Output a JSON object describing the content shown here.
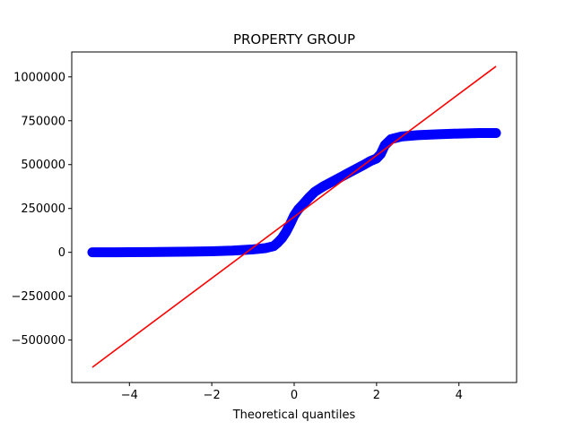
{
  "chart_data": {
    "type": "scatter",
    "title": "PROPERTY GROUP",
    "xlabel": "Theoretical quantiles",
    "ylabel": "",
    "xlim": [
      -5.4,
      5.4
    ],
    "ylim": [
      -742000,
      1142000
    ],
    "x_ticks": [
      -4,
      -2,
      0,
      2,
      4
    ],
    "x_tick_labels": [
      "−4",
      "−2",
      "0",
      "2",
      "4"
    ],
    "y_ticks": [
      -500000,
      -250000,
      0,
      250000,
      500000,
      750000,
      1000000
    ],
    "y_tick_labels": [
      "−500000",
      "−250000",
      "0",
      "250000",
      "500000",
      "750000",
      "1000000"
    ],
    "grid": false,
    "series": [
      {
        "kind": "points",
        "color": "#0000ff",
        "points": [
          [
            -4.9,
            0
          ],
          [
            -4.6,
            0
          ],
          [
            -4.3,
            500
          ],
          [
            -4.0,
            1000
          ],
          [
            -3.5,
            1500
          ],
          [
            -3.0,
            2500
          ],
          [
            -2.5,
            4000
          ],
          [
            -2.0,
            6000
          ],
          [
            -1.5,
            10000
          ],
          [
            -1.0,
            17000
          ],
          [
            -0.7,
            24000
          ],
          [
            -0.5,
            35000
          ],
          [
            -0.4,
            55000
          ],
          [
            -0.3,
            80000
          ],
          [
            -0.2,
            115000
          ],
          [
            -0.1,
            160000
          ],
          [
            0.0,
            210000
          ],
          [
            0.1,
            245000
          ],
          [
            0.2,
            270000
          ],
          [
            0.35,
            310000
          ],
          [
            0.5,
            345000
          ],
          [
            0.7,
            375000
          ],
          [
            0.9,
            400000
          ],
          [
            1.1,
            425000
          ],
          [
            1.3,
            450000
          ],
          [
            1.5,
            475000
          ],
          [
            1.7,
            500000
          ],
          [
            1.85,
            520000
          ],
          [
            2.0,
            535000
          ],
          [
            2.1,
            560000
          ],
          [
            2.2,
            610000
          ],
          [
            2.35,
            645000
          ],
          [
            2.6,
            660000
          ],
          [
            3.0,
            668000
          ],
          [
            3.5,
            673000
          ],
          [
            4.0,
            677000
          ],
          [
            4.5,
            680000
          ],
          [
            4.9,
            680000
          ]
        ]
      },
      {
        "kind": "line",
        "color": "#ff0000",
        "points": [
          [
            -4.9,
            -655000
          ],
          [
            4.9,
            1060000
          ]
        ]
      }
    ]
  }
}
